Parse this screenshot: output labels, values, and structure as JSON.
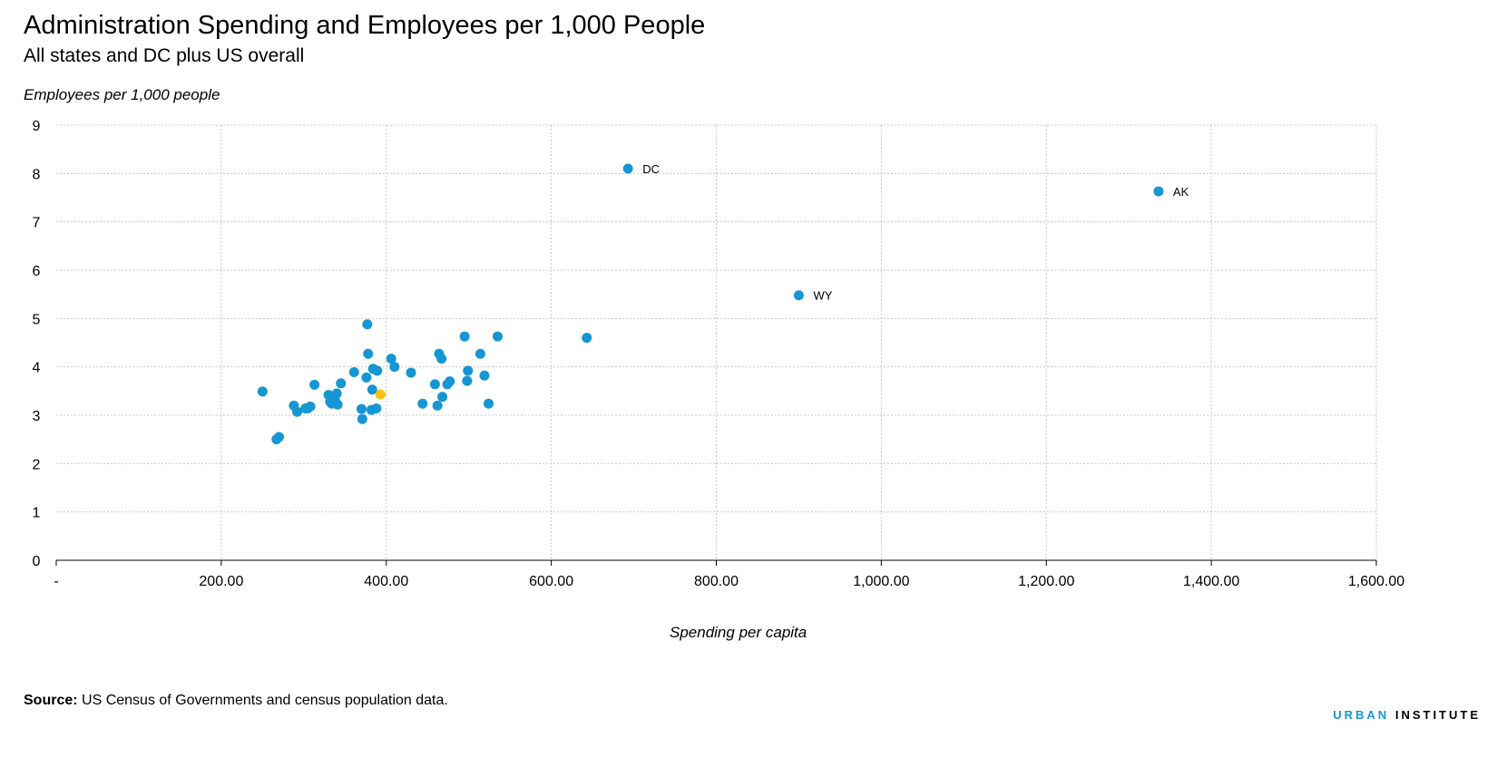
{
  "header": {
    "title": "Administration Spending and Employees per 1,000 People",
    "subtitle": "All states and DC plus US overall"
  },
  "footer": {
    "source_label": "Source:",
    "source_text": "US Census of Governments and census population data.",
    "logo_part1": "URBAN",
    "logo_part2": "INSTITUTE"
  },
  "colors": {
    "state": "#1696d2",
    "us": "#fdbf11",
    "grid": "#c8c8c8"
  },
  "chart_data": {
    "type": "scatter",
    "title": "Administration Spending and Employees per 1,000 People",
    "subtitle": "All states and DC plus US overall",
    "xlabel": "Spending per capita",
    "ylabel": "Employees per 1,000 people",
    "xlim": [
      0,
      1600
    ],
    "ylim": [
      0,
      9
    ],
    "x_ticks": [
      0,
      200,
      400,
      600,
      800,
      1000,
      1200,
      1400,
      1600
    ],
    "x_tick_labels": [
      "-",
      "200.00",
      "400.00",
      "600.00",
      "800.00",
      "1,000.00",
      "1,200.00",
      "1,400.00",
      "1,600.00"
    ],
    "y_ticks": [
      0,
      1,
      2,
      3,
      4,
      5,
      6,
      7,
      8,
      9
    ],
    "grid": "dotted, both axes",
    "series": [
      {
        "color": "#1696d2",
        "points": [
          {
            "x": 693,
            "y": 8.1,
            "label": "DC"
          },
          {
            "x": 1336,
            "y": 7.63,
            "label": "AK"
          },
          {
            "x": 900,
            "y": 5.48,
            "label": "WY"
          },
          {
            "x": 250,
            "y": 3.49
          },
          {
            "x": 267,
            "y": 2.5
          },
          {
            "x": 270,
            "y": 2.55
          },
          {
            "x": 288,
            "y": 3.2
          },
          {
            "x": 292,
            "y": 3.07
          },
          {
            "x": 302,
            "y": 3.14
          },
          {
            "x": 305,
            "y": 3.14
          },
          {
            "x": 308,
            "y": 3.18
          },
          {
            "x": 313,
            "y": 3.63
          },
          {
            "x": 330,
            "y": 3.42
          },
          {
            "x": 332,
            "y": 3.28
          },
          {
            "x": 334,
            "y": 3.24
          },
          {
            "x": 337,
            "y": 3.37
          },
          {
            "x": 338,
            "y": 3.3
          },
          {
            "x": 340,
            "y": 3.45
          },
          {
            "x": 341,
            "y": 3.22
          },
          {
            "x": 345,
            "y": 3.66
          },
          {
            "x": 361,
            "y": 3.89
          },
          {
            "x": 370,
            "y": 3.13
          },
          {
            "x": 371,
            "y": 2.92
          },
          {
            "x": 376,
            "y": 3.78
          },
          {
            "x": 377,
            "y": 4.88
          },
          {
            "x": 378,
            "y": 4.27
          },
          {
            "x": 382,
            "y": 3.11
          },
          {
            "x": 383,
            "y": 3.53
          },
          {
            "x": 384,
            "y": 3.96
          },
          {
            "x": 388,
            "y": 3.14
          },
          {
            "x": 389,
            "y": 3.92
          },
          {
            "x": 406,
            "y": 4.17
          },
          {
            "x": 410,
            "y": 4.0
          },
          {
            "x": 430,
            "y": 3.88
          },
          {
            "x": 444,
            "y": 3.24
          },
          {
            "x": 459,
            "y": 3.64
          },
          {
            "x": 462,
            "y": 3.2
          },
          {
            "x": 464,
            "y": 4.27
          },
          {
            "x": 467,
            "y": 4.17
          },
          {
            "x": 468,
            "y": 3.38
          },
          {
            "x": 474,
            "y": 3.64
          },
          {
            "x": 477,
            "y": 3.7
          },
          {
            "x": 495,
            "y": 4.63
          },
          {
            "x": 498,
            "y": 3.71
          },
          {
            "x": 499,
            "y": 3.92
          },
          {
            "x": 514,
            "y": 4.27
          },
          {
            "x": 519,
            "y": 3.82
          },
          {
            "x": 524,
            "y": 3.24
          },
          {
            "x": 535,
            "y": 4.63
          },
          {
            "x": 643,
            "y": 4.6
          }
        ]
      },
      {
        "color": "#fdbf11",
        "points": [
          {
            "x": 393,
            "y": 3.43
          }
        ]
      }
    ]
  }
}
